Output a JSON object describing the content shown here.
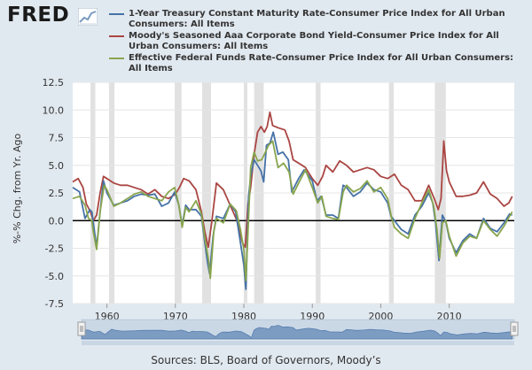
{
  "app": {
    "logo_text": "FRED"
  },
  "colors": {
    "background": "#e1e9f0",
    "plot_bg": "#ffffff",
    "recession": "#e1e1e1",
    "zero_line": "#000000"
  },
  "footer": {
    "sources": "Sources: BLS, Board of Governors, Moody’s"
  },
  "chart_data": {
    "type": "line",
    "title": "",
    "xlabel": "",
    "ylabel": "%-% Chg. from Yr. Ago",
    "xlim": [
      1955.0,
      2019.5
    ],
    "ylim": [
      -7.5,
      12.5
    ],
    "yticks": [
      -7.5,
      -5.0,
      -2.5,
      0.0,
      2.5,
      5.0,
      7.5,
      10.0,
      12.5
    ],
    "ytick_labels": [
      "-7.5",
      "-5.0",
      "-2.5",
      "0.0",
      "2.5",
      "5.0",
      "7.5",
      "10.0",
      "12.5"
    ],
    "xticks": [
      1960,
      1970,
      1980,
      1990,
      2000,
      2010
    ],
    "xtick_labels": [
      "1960",
      "1970",
      "1980",
      "1990",
      "2000",
      "2010"
    ],
    "grid": "horizontal",
    "legend_position": "top",
    "recessions": [
      [
        1957.6,
        1958.3
      ],
      [
        1960.3,
        1961.1
      ],
      [
        1969.9,
        1970.9
      ],
      [
        1973.9,
        1975.2
      ],
      [
        1980.0,
        1980.5
      ],
      [
        1981.5,
        1982.9
      ],
      [
        1990.5,
        1991.2
      ],
      [
        2001.2,
        2001.9
      ],
      [
        2007.9,
        2009.5
      ]
    ],
    "series": [
      {
        "name": "1-Year Treasury Constant Maturity Rate-Consumer Price Index for All Urban Consumers: All Items",
        "color": "#4572a7",
        "points": [
          [
            1955.0,
            3.0
          ],
          [
            1956.0,
            2.6
          ],
          [
            1956.8,
            0.2
          ],
          [
            1957.5,
            1.0
          ],
          [
            1957.8,
            0.8
          ],
          [
            1958.0,
            -0.2
          ],
          [
            1958.5,
            -2.4
          ],
          [
            1959.0,
            0.8
          ],
          [
            1959.5,
            3.6
          ],
          [
            1960.0,
            2.5
          ],
          [
            1961.0,
            1.4
          ],
          [
            1962.0,
            1.6
          ],
          [
            1963.0,
            1.8
          ],
          [
            1964.0,
            2.2
          ],
          [
            1965.0,
            2.4
          ],
          [
            1966.0,
            2.3
          ],
          [
            1967.0,
            2.4
          ],
          [
            1968.0,
            1.3
          ],
          [
            1969.0,
            1.6
          ],
          [
            1969.9,
            2.6
          ],
          [
            1970.5,
            1.4
          ],
          [
            1971.0,
            -0.4
          ],
          [
            1971.5,
            1.4
          ],
          [
            1972.0,
            1.0
          ],
          [
            1973.0,
            1.0
          ],
          [
            1973.8,
            0.4
          ],
          [
            1974.3,
            -2.0
          ],
          [
            1974.7,
            -3.8
          ],
          [
            1975.0,
            -4.8
          ],
          [
            1975.5,
            -1.4
          ],
          [
            1976.0,
            0.4
          ],
          [
            1977.0,
            0.2
          ],
          [
            1978.0,
            1.5
          ],
          [
            1978.8,
            0.8
          ],
          [
            1979.5,
            -2.0
          ],
          [
            1980.0,
            -4.0
          ],
          [
            1980.3,
            -6.2
          ],
          [
            1980.5,
            -2.0
          ],
          [
            1980.7,
            2.2
          ],
          [
            1981.0,
            4.0
          ],
          [
            1981.5,
            5.5
          ],
          [
            1982.0,
            5.0
          ],
          [
            1982.5,
            4.5
          ],
          [
            1982.9,
            3.5
          ],
          [
            1983.3,
            6.8
          ],
          [
            1983.8,
            7.0
          ],
          [
            1984.3,
            8.0
          ],
          [
            1985.0,
            6.0
          ],
          [
            1985.7,
            6.2
          ],
          [
            1986.5,
            5.5
          ],
          [
            1987.0,
            2.6
          ],
          [
            1988.0,
            3.8
          ],
          [
            1988.8,
            4.6
          ],
          [
            1989.3,
            4.2
          ],
          [
            1990.0,
            3.6
          ],
          [
            1990.7,
            1.8
          ],
          [
            1991.3,
            2.2
          ],
          [
            1992.0,
            0.5
          ],
          [
            1993.0,
            0.5
          ],
          [
            1993.8,
            0.2
          ],
          [
            1994.5,
            3.2
          ],
          [
            1995.0,
            3.0
          ],
          [
            1996.0,
            2.2
          ],
          [
            1997.0,
            2.6
          ],
          [
            1998.0,
            3.4
          ],
          [
            1999.0,
            2.8
          ],
          [
            2000.0,
            2.6
          ],
          [
            2001.0,
            1.6
          ],
          [
            2001.5,
            0.4
          ],
          [
            2002.0,
            0.0
          ],
          [
            2003.0,
            -0.8
          ],
          [
            2004.0,
            -1.2
          ],
          [
            2005.0,
            0.5
          ],
          [
            2006.0,
            1.3
          ],
          [
            2007.0,
            2.5
          ],
          [
            2007.6,
            1.6
          ],
          [
            2008.0,
            -0.2
          ],
          [
            2008.5,
            -3.6
          ],
          [
            2009.0,
            0.5
          ],
          [
            2009.5,
            -0.1
          ],
          [
            2010.0,
            -1.6
          ],
          [
            2011.0,
            -2.9
          ],
          [
            2012.0,
            -1.8
          ],
          [
            2013.0,
            -1.2
          ],
          [
            2014.0,
            -1.6
          ],
          [
            2015.0,
            0.2
          ],
          [
            2016.0,
            -0.7
          ],
          [
            2017.0,
            -1.0
          ],
          [
            2018.0,
            -0.2
          ],
          [
            2018.8,
            0.6
          ],
          [
            2019.2,
            0.5
          ]
        ]
      },
      {
        "name": "Moody's Seasoned Aaa Corporate Bond Yield-Consumer Price Index for All Urban Consumers: All Items",
        "color": "#aa4643",
        "points": [
          [
            1955.0,
            3.5
          ],
          [
            1955.8,
            3.8
          ],
          [
            1956.5,
            3.0
          ],
          [
            1957.0,
            1.5
          ],
          [
            1957.6,
            0.8
          ],
          [
            1958.0,
            0.0
          ],
          [
            1958.5,
            0.5
          ],
          [
            1959.0,
            2.5
          ],
          [
            1959.5,
            4.0
          ],
          [
            1960.0,
            3.8
          ],
          [
            1961.0,
            3.4
          ],
          [
            1962.0,
            3.2
          ],
          [
            1963.0,
            3.2
          ],
          [
            1964.0,
            3.0
          ],
          [
            1965.0,
            2.8
          ],
          [
            1966.0,
            2.4
          ],
          [
            1967.0,
            2.8
          ],
          [
            1968.0,
            2.2
          ],
          [
            1969.0,
            2.0
          ],
          [
            1970.0,
            2.4
          ],
          [
            1970.6,
            3.0
          ],
          [
            1971.2,
            3.8
          ],
          [
            1972.0,
            3.6
          ],
          [
            1973.0,
            2.8
          ],
          [
            1973.8,
            0.8
          ],
          [
            1974.3,
            -1.0
          ],
          [
            1974.8,
            -2.4
          ],
          [
            1975.3,
            -0.2
          ],
          [
            1976.0,
            3.4
          ],
          [
            1977.0,
            2.8
          ],
          [
            1978.0,
            1.4
          ],
          [
            1979.0,
            0.0
          ],
          [
            1979.8,
            -2.0
          ],
          [
            1980.2,
            -2.4
          ],
          [
            1980.6,
            1.5
          ],
          [
            1981.0,
            3.0
          ],
          [
            1981.5,
            6.0
          ],
          [
            1982.0,
            8.0
          ],
          [
            1982.5,
            8.5
          ],
          [
            1983.0,
            8.0
          ],
          [
            1983.4,
            8.5
          ],
          [
            1983.8,
            9.8
          ],
          [
            1984.2,
            8.6
          ],
          [
            1985.0,
            8.4
          ],
          [
            1986.0,
            8.2
          ],
          [
            1986.6,
            7.2
          ],
          [
            1987.2,
            5.5
          ],
          [
            1988.0,
            5.2
          ],
          [
            1989.0,
            4.8
          ],
          [
            1990.0,
            3.8
          ],
          [
            1990.8,
            3.2
          ],
          [
            1991.5,
            4.0
          ],
          [
            1992.0,
            5.0
          ],
          [
            1993.0,
            4.4
          ],
          [
            1994.0,
            5.4
          ],
          [
            1995.0,
            5.0
          ],
          [
            1996.0,
            4.4
          ],
          [
            1997.0,
            4.6
          ],
          [
            1998.0,
            4.8
          ],
          [
            1999.0,
            4.6
          ],
          [
            2000.0,
            4.0
          ],
          [
            2001.0,
            3.8
          ],
          [
            2002.0,
            4.2
          ],
          [
            2003.0,
            3.2
          ],
          [
            2004.0,
            2.8
          ],
          [
            2005.0,
            1.8
          ],
          [
            2006.0,
            1.8
          ],
          [
            2007.0,
            3.2
          ],
          [
            2007.8,
            2.0
          ],
          [
            2008.4,
            1.0
          ],
          [
            2008.8,
            2.0
          ],
          [
            2009.2,
            7.2
          ],
          [
            2009.6,
            4.5
          ],
          [
            2010.0,
            3.5
          ],
          [
            2011.0,
            2.2
          ],
          [
            2012.0,
            2.2
          ],
          [
            2013.0,
            2.3
          ],
          [
            2014.0,
            2.5
          ],
          [
            2015.0,
            3.5
          ],
          [
            2016.0,
            2.4
          ],
          [
            2017.0,
            2.0
          ],
          [
            2018.0,
            1.3
          ],
          [
            2018.7,
            1.6
          ],
          [
            2019.2,
            2.2
          ]
        ]
      },
      {
        "name": "Effective Federal Funds Rate-Consumer Price Index for All Urban Consumers: All Items",
        "color": "#89a54e",
        "points": [
          [
            1955.0,
            2.0
          ],
          [
            1956.0,
            2.2
          ],
          [
            1956.8,
            1.4
          ],
          [
            1957.3,
            0.2
          ],
          [
            1957.8,
            0.0
          ],
          [
            1958.0,
            -1.0
          ],
          [
            1958.5,
            -2.6
          ],
          [
            1959.0,
            0.8
          ],
          [
            1959.6,
            3.2
          ],
          [
            1960.0,
            2.8
          ],
          [
            1961.0,
            1.3
          ],
          [
            1962.0,
            1.6
          ],
          [
            1963.0,
            2.0
          ],
          [
            1964.0,
            2.4
          ],
          [
            1965.0,
            2.6
          ],
          [
            1966.0,
            2.2
          ],
          [
            1967.0,
            2.0
          ],
          [
            1968.0,
            1.8
          ],
          [
            1969.0,
            2.6
          ],
          [
            1969.9,
            3.0
          ],
          [
            1970.5,
            1.4
          ],
          [
            1971.0,
            -0.6
          ],
          [
            1971.5,
            1.2
          ],
          [
            1972.0,
            0.8
          ],
          [
            1973.0,
            1.8
          ],
          [
            1973.8,
            0.6
          ],
          [
            1974.3,
            -1.6
          ],
          [
            1974.8,
            -3.4
          ],
          [
            1975.1,
            -5.2
          ],
          [
            1975.6,
            -1.0
          ],
          [
            1976.0,
            0.2
          ],
          [
            1977.0,
            -0.2
          ],
          [
            1978.0,
            1.5
          ],
          [
            1978.9,
            0.9
          ],
          [
            1979.5,
            -0.8
          ],
          [
            1980.0,
            -2.6
          ],
          [
            1980.3,
            -5.4
          ],
          [
            1980.6,
            -1.0
          ],
          [
            1981.0,
            4.8
          ],
          [
            1981.5,
            6.2
          ],
          [
            1982.0,
            5.4
          ],
          [
            1982.6,
            5.5
          ],
          [
            1983.0,
            6.0
          ],
          [
            1983.6,
            6.8
          ],
          [
            1984.2,
            7.2
          ],
          [
            1985.0,
            4.8
          ],
          [
            1985.8,
            5.2
          ],
          [
            1986.6,
            4.4
          ],
          [
            1987.2,
            2.4
          ],
          [
            1988.0,
            3.4
          ],
          [
            1989.0,
            4.6
          ],
          [
            1990.0,
            3.0
          ],
          [
            1990.8,
            1.6
          ],
          [
            1991.4,
            2.2
          ],
          [
            1992.0,
            0.4
          ],
          [
            1993.0,
            0.2
          ],
          [
            1993.8,
            0.1
          ],
          [
            1994.5,
            2.6
          ],
          [
            1995.0,
            3.2
          ],
          [
            1996.0,
            2.6
          ],
          [
            1997.0,
            2.9
          ],
          [
            1998.0,
            3.6
          ],
          [
            1999.0,
            2.6
          ],
          [
            2000.0,
            3.0
          ],
          [
            2001.0,
            2.0
          ],
          [
            2001.6,
            0.2
          ],
          [
            2002.0,
            -0.6
          ],
          [
            2003.0,
            -1.2
          ],
          [
            2004.0,
            -1.6
          ],
          [
            2005.0,
            0.2
          ],
          [
            2006.0,
            1.6
          ],
          [
            2007.0,
            2.8
          ],
          [
            2007.7,
            1.4
          ],
          [
            2008.2,
            -0.8
          ],
          [
            2008.6,
            -3.4
          ],
          [
            2009.0,
            -0.2
          ],
          [
            2009.5,
            0.0
          ],
          [
            2010.0,
            -1.4
          ],
          [
            2011.0,
            -3.2
          ],
          [
            2012.0,
            -2.0
          ],
          [
            2013.0,
            -1.4
          ],
          [
            2014.0,
            -1.6
          ],
          [
            2015.0,
            0.0
          ],
          [
            2016.0,
            -0.8
          ],
          [
            2017.0,
            -1.4
          ],
          [
            2018.0,
            -0.5
          ],
          [
            2018.8,
            0.4
          ],
          [
            2019.2,
            0.8
          ]
        ]
      }
    ]
  }
}
